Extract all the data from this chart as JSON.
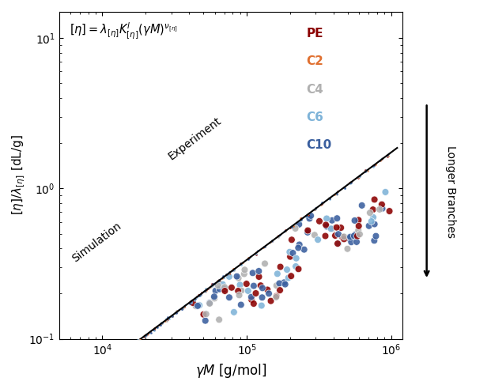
{
  "title_formula": "$[\\eta] = \\lambda_{[\\eta]} K^l_{[\\eta]} (\\gamma M)^{\\nu_{[\\eta]}}$",
  "xlabel": "$\\gamma M$ [g/mol]",
  "ylabel": "$[\\eta]/\\lambda_{[\\eta]}$ [dL/g]",
  "xlim": [
    5000,
    1200000
  ],
  "ylim": [
    0.1,
    15
  ],
  "power_law_slope": 0.715,
  "power_law_intercept_log": -4.05,
  "x_line_start": 5000,
  "x_line_end": 1100000,
  "series": [
    {
      "name": "PE",
      "color": "#8B0000"
    },
    {
      "name": "C2",
      "color": "#E07030"
    },
    {
      "name": "C4",
      "color": "#B0B0B0"
    },
    {
      "name": "C6",
      "color": "#7EB3D8"
    },
    {
      "name": "C10",
      "color": "#3A5F9F"
    }
  ],
  "sim_label": "Simulation",
  "exp_label": "Experiment",
  "background_color": "#FFFFFF",
  "fig_width": 6.21,
  "fig_height": 4.87,
  "dpi": 100
}
